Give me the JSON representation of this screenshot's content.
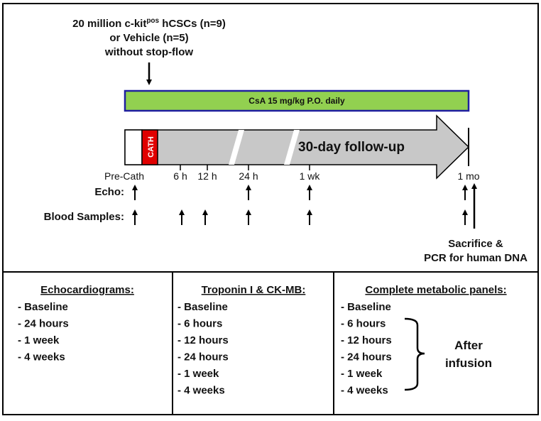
{
  "injection": {
    "line1": "20 million c-kit",
    "line1_sup": "pos",
    "line1_end": " hCSCs (n=9)",
    "line2": "or Vehicle (n=5)",
    "line3": "without stop-flow"
  },
  "treatment": "CsA 15 mg/kg P.O. daily",
  "cath": "CATH",
  "followup": "30-day follow-up",
  "timepoints": [
    "Pre-Cath",
    "6 h",
    "12 h",
    "24 h",
    "1 wk",
    "1 mo"
  ],
  "rows": [
    "Echo:",
    "Blood Samples:"
  ],
  "sacrifice": [
    "Sacrifice &",
    "PCR for human DNA"
  ],
  "columns": [
    {
      "title": "Echocardiograms:",
      "items": [
        "- Baseline",
        "- 24 hours",
        "- 1 week",
        "- 4 weeks"
      ]
    },
    {
      "title": "Troponin I & CK-MB:",
      "items": [
        "- Baseline",
        "- 6 hours",
        "- 12 hours",
        "- 24 hours",
        "- 1 week",
        "- 4 weeks"
      ]
    },
    {
      "title": "Complete metabolic panels:",
      "items": [
        "- Baseline",
        "- 6 hours",
        "- 12 hours",
        "- 24 hours",
        "- 1 week",
        "- 4 weeks"
      ]
    }
  ],
  "note": [
    "After",
    "infusion"
  ]
}
